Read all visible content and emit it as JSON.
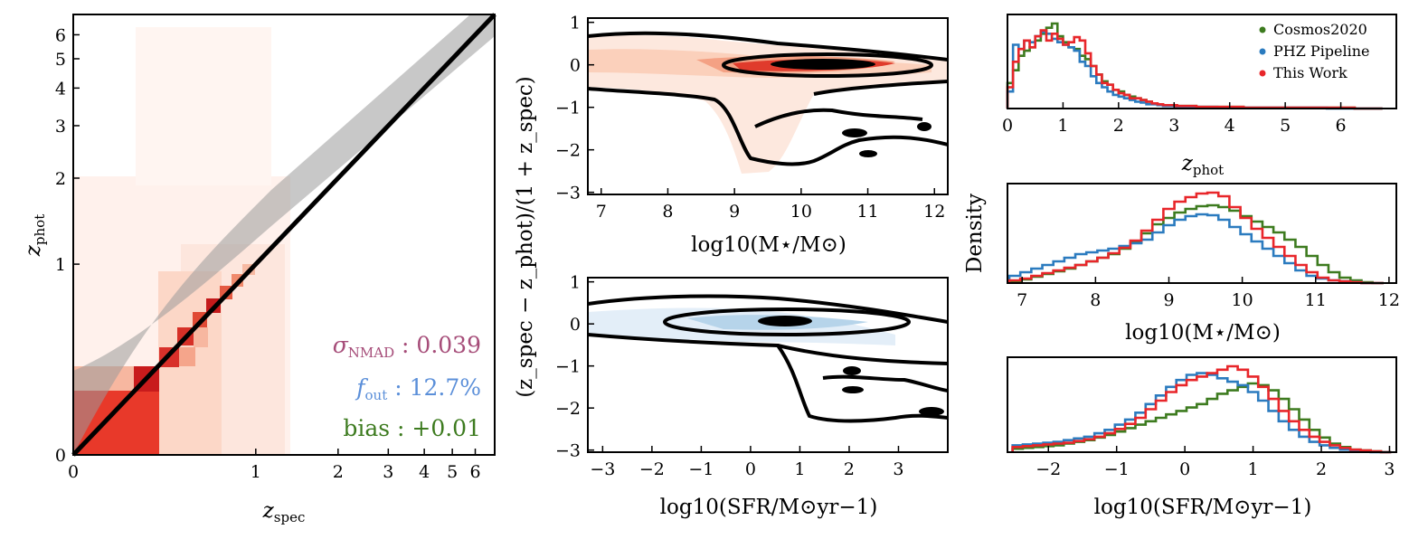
{
  "chart_data": [
    {
      "id": "scatter-zspec-zphot",
      "type": "heatmap",
      "xlabel": "z_spec",
      "ylabel": "z_phot",
      "xlim": [
        0,
        7
      ],
      "ylim": [
        0,
        7
      ],
      "scale": "asinh-like",
      "x_ticks": [
        "0",
        "1",
        "2",
        "3",
        "4",
        "5",
        "6"
      ],
      "y_ticks": [
        "0",
        "1",
        "2",
        "3",
        "4",
        "5",
        "6"
      ],
      "one_to_one_line": true,
      "outlier_band": true,
      "annotations": [
        {
          "label": "σ_NMAD : 0.039",
          "color": "#a64d79"
        },
        {
          "label": "f_out : 12.7%",
          "color": "#5b8fd9"
        },
        {
          "label": "bias : +0.01",
          "color": "#3d7b1f"
        }
      ]
    },
    {
      "id": "residual-vs-mass",
      "type": "heatmap",
      "xlabel": "log10(M⋆/M⊙)",
      "ylabel": "(z_spec − z_phot)/(1 + z_spec)",
      "xlim": [
        6.8,
        12.2
      ],
      "ylim": [
        -3.05,
        1.1
      ],
      "x_ticks": [
        "7",
        "8",
        "9",
        "10",
        "11",
        "12"
      ],
      "y_ticks": [
        "1",
        "0",
        "−1",
        "−2",
        "−3"
      ],
      "colormap": "reds"
    },
    {
      "id": "residual-vs-sfr",
      "type": "heatmap",
      "xlabel": "log10(SFR/M⊙yr−1)",
      "ylabel": "(z_spec − z_phot)/(1 + z_spec)",
      "xlim": [
        -3.3,
        4.0
      ],
      "ylim": [
        -3.05,
        1.1
      ],
      "x_ticks": [
        "−3",
        "−2",
        "−1",
        "0",
        "1",
        "2",
        "3"
      ],
      "y_ticks": [
        "1",
        "0",
        "−1",
        "−2",
        "−3"
      ],
      "colormap": "blues"
    },
    {
      "id": "hist-zphot",
      "type": "line",
      "xlabel": "z_phot",
      "xlim": [
        0,
        7
      ],
      "x_ticks": [
        "0",
        "1",
        "2",
        "3",
        "4",
        "5",
        "6"
      ],
      "legend": "top-right",
      "x": [
        0.05,
        0.15,
        0.25,
        0.35,
        0.45,
        0.55,
        0.65,
        0.75,
        0.85,
        0.95,
        1.05,
        1.15,
        1.25,
        1.35,
        1.45,
        1.55,
        1.65,
        1.75,
        1.85,
        1.95,
        2.05,
        2.15,
        2.25,
        2.35,
        2.45,
        2.55,
        2.65,
        2.75,
        2.85,
        2.95,
        3.2,
        3.6,
        4.0,
        4.5,
        5.0,
        5.5,
        6.0,
        6.5
      ],
      "series": [
        {
          "name": "Cosmos2020",
          "color": "#3d7b1f",
          "values": [
            0.3,
            0.45,
            0.62,
            0.68,
            0.72,
            0.8,
            0.88,
            0.95,
            1.0,
            0.85,
            0.78,
            0.72,
            0.7,
            0.62,
            0.58,
            0.5,
            0.4,
            0.32,
            0.28,
            0.22,
            0.2,
            0.16,
            0.14,
            0.12,
            0.1,
            0.08,
            0.06,
            0.05,
            0.04,
            0.03,
            0.03,
            0.02,
            0.02,
            0.01,
            0.01,
            0.01,
            0.01,
            0.0
          ]
        },
        {
          "name": "PHZ Pipeline",
          "color": "#2b7bbf",
          "values": [
            0.2,
            0.75,
            0.7,
            0.8,
            0.78,
            0.85,
            0.9,
            0.88,
            0.82,
            0.78,
            0.75,
            0.72,
            0.68,
            0.55,
            0.5,
            0.38,
            0.3,
            0.25,
            0.2,
            0.16,
            0.14,
            0.12,
            0.1,
            0.08,
            0.07,
            0.05,
            0.05,
            0.04,
            0.03,
            0.03,
            0.02,
            0.02,
            0.01,
            0.01,
            0.01,
            0.01,
            0.0,
            0.0
          ]
        },
        {
          "name": "This Work",
          "color": "#e8262a",
          "values": [
            0.25,
            0.55,
            0.7,
            0.8,
            0.72,
            0.85,
            0.92,
            0.8,
            0.88,
            0.82,
            0.75,
            0.78,
            0.84,
            0.8,
            0.65,
            0.5,
            0.4,
            0.3,
            0.28,
            0.22,
            0.18,
            0.16,
            0.12,
            0.12,
            0.1,
            0.08,
            0.06,
            0.05,
            0.04,
            0.04,
            0.03,
            0.02,
            0.02,
            0.01,
            0.01,
            0.01,
            0.01,
            0.0
          ]
        }
      ]
    },
    {
      "id": "hist-mass",
      "type": "line",
      "xlabel": "log10(M⋆/M⊙)",
      "xlim": [
        6.8,
        12.1
      ],
      "x_ticks": [
        "7",
        "8",
        "9",
        "10",
        "11",
        "12"
      ],
      "x": [
        6.9,
        7.05,
        7.2,
        7.35,
        7.5,
        7.65,
        7.8,
        7.95,
        8.1,
        8.25,
        8.4,
        8.55,
        8.7,
        8.85,
        9.0,
        9.15,
        9.3,
        9.45,
        9.6,
        9.75,
        9.9,
        10.05,
        10.2,
        10.35,
        10.5,
        10.65,
        10.8,
        10.95,
        11.1,
        11.25,
        11.4,
        11.55,
        11.7,
        11.85
      ],
      "series": [
        {
          "name": "Cosmos2020",
          "color": "#3d7b1f",
          "values": [
            0.02,
            0.04,
            0.07,
            0.1,
            0.13,
            0.16,
            0.2,
            0.24,
            0.28,
            0.32,
            0.38,
            0.45,
            0.55,
            0.65,
            0.72,
            0.78,
            0.82,
            0.85,
            0.86,
            0.84,
            0.8,
            0.74,
            0.68,
            0.62,
            0.56,
            0.48,
            0.4,
            0.3,
            0.2,
            0.12,
            0.06,
            0.03,
            0.01,
            0.0
          ]
        },
        {
          "name": "PHZ Pipeline",
          "color": "#2b7bbf",
          "values": [
            0.08,
            0.12,
            0.16,
            0.2,
            0.24,
            0.28,
            0.32,
            0.34,
            0.36,
            0.38,
            0.41,
            0.44,
            0.48,
            0.56,
            0.64,
            0.7,
            0.74,
            0.76,
            0.75,
            0.7,
            0.62,
            0.54,
            0.46,
            0.38,
            0.3,
            0.22,
            0.14,
            0.08,
            0.05,
            0.03,
            0.02,
            0.01,
            0.0,
            0.0
          ]
        },
        {
          "name": "This Work",
          "color": "#e8262a",
          "values": [
            0.03,
            0.05,
            0.08,
            0.11,
            0.14,
            0.17,
            0.2,
            0.24,
            0.28,
            0.33,
            0.39,
            0.47,
            0.58,
            0.7,
            0.82,
            0.9,
            0.95,
            0.99,
            1.0,
            0.96,
            0.84,
            0.72,
            0.6,
            0.5,
            0.4,
            0.3,
            0.2,
            0.12,
            0.06,
            0.03,
            0.02,
            0.01,
            0.0,
            0.0
          ]
        }
      ]
    },
    {
      "id": "hist-sfr",
      "type": "line",
      "xlabel": "log10(SFR/M⊙yr−1)",
      "xlim": [
        -2.6,
        3.1
      ],
      "x_ticks": [
        "−2",
        "−1",
        "0",
        "1",
        "2",
        "3"
      ],
      "x": [
        -2.45,
        -2.3,
        -2.15,
        -2.0,
        -1.85,
        -1.7,
        -1.55,
        -1.4,
        -1.25,
        -1.1,
        -0.95,
        -0.8,
        -0.65,
        -0.5,
        -0.35,
        -0.2,
        -0.05,
        0.1,
        0.25,
        0.4,
        0.55,
        0.7,
        0.85,
        1.0,
        1.15,
        1.3,
        1.45,
        1.6,
        1.75,
        1.9,
        2.05,
        2.2,
        2.35,
        2.5,
        2.65,
        2.8,
        2.95
      ],
      "series": [
        {
          "name": "Cosmos2020",
          "color": "#3d7b1f",
          "values": [
            0.04,
            0.05,
            0.06,
            0.07,
            0.08,
            0.1,
            0.12,
            0.14,
            0.17,
            0.2,
            0.24,
            0.28,
            0.32,
            0.36,
            0.4,
            0.44,
            0.48,
            0.52,
            0.56,
            0.62,
            0.68,
            0.72,
            0.76,
            0.8,
            0.78,
            0.72,
            0.62,
            0.5,
            0.38,
            0.26,
            0.17,
            0.1,
            0.06,
            0.03,
            0.02,
            0.01,
            0.0
          ]
        },
        {
          "name": "PHZ Pipeline",
          "color": "#2b7bbf",
          "values": [
            0.08,
            0.09,
            0.1,
            0.11,
            0.12,
            0.14,
            0.16,
            0.18,
            0.22,
            0.26,
            0.32,
            0.38,
            0.46,
            0.56,
            0.66,
            0.76,
            0.84,
            0.9,
            0.92,
            0.9,
            0.86,
            0.82,
            0.78,
            0.7,
            0.6,
            0.48,
            0.36,
            0.26,
            0.18,
            0.12,
            0.08,
            0.05,
            0.03,
            0.02,
            0.01,
            0.0,
            0.0
          ]
        },
        {
          "name": "This Work",
          "color": "#e8262a",
          "values": [
            0.06,
            0.07,
            0.08,
            0.09,
            0.1,
            0.11,
            0.13,
            0.15,
            0.18,
            0.22,
            0.27,
            0.33,
            0.4,
            0.5,
            0.6,
            0.7,
            0.78,
            0.84,
            0.88,
            0.92,
            0.96,
            1.0,
            0.96,
            0.88,
            0.76,
            0.62,
            0.48,
            0.36,
            0.26,
            0.18,
            0.12,
            0.08,
            0.05,
            0.03,
            0.02,
            0.01,
            0.0
          ]
        }
      ]
    }
  ],
  "labels": {
    "p1_x": "z",
    "p1_x_sub": "spec",
    "p1_y": "z",
    "p1_y_sub": "phot",
    "residual_y": "(z_spec − z_phot)/(1 + z_spec)",
    "p2_x": "log10(M⋆/M⊙)",
    "p3_x": "log10(SFR/M⊙yr−1)",
    "density_y": "Density",
    "p4_x": "z",
    "p4_x_sub": "phot",
    "p5_x": "log10(M⋆/M⊙)",
    "p6_x": "log10(SFR/M⊙yr−1)",
    "sigma_sym": "σ",
    "sigma_sub": "NMAD",
    "sigma_val": " : 0.039",
    "fout_sym": "f",
    "fout_sub": "out",
    "fout_val": " : 12.7%",
    "bias_text": "bias : +0.01"
  }
}
